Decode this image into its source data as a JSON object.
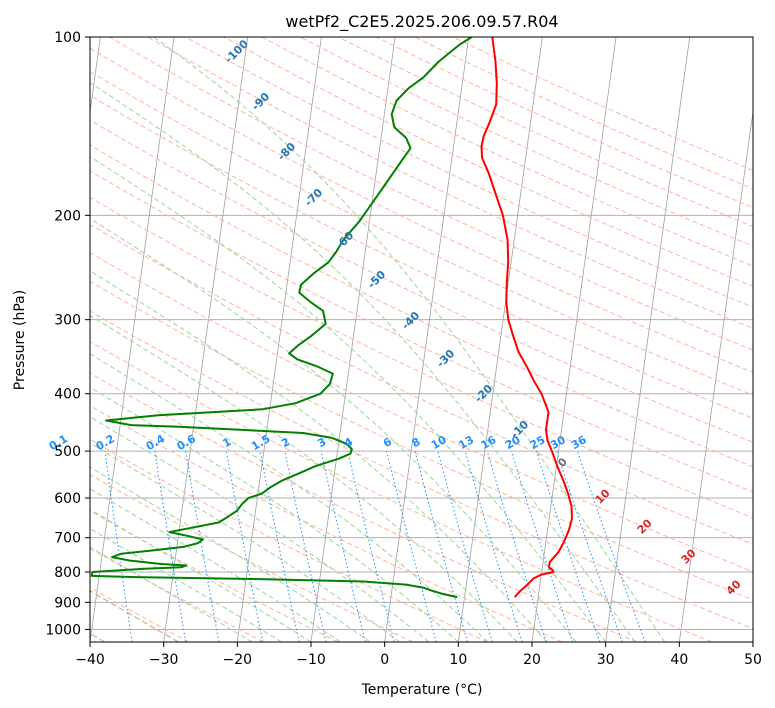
{
  "chart_data": {
    "type": "line",
    "chart_kind": "skew-T log-P diagram",
    "title": "wetPf2_C2E5.2025.206.09.57.R04",
    "xlabel": "Temperature (°C)",
    "ylabel": "Pressure (hPa)",
    "xlim": [
      -40,
      50
    ],
    "ylim": [
      1050,
      100
    ],
    "y_scale": "log",
    "x_ticks": [
      -40,
      -30,
      -20,
      -10,
      0,
      10,
      20,
      30,
      40,
      50
    ],
    "y_ticks": [
      100,
      200,
      300,
      400,
      500,
      600,
      700,
      800,
      900,
      1000
    ],
    "grid": true,
    "series": [
      {
        "color": "#ff0000",
        "points": [
          [
            882,
            16.8
          ],
          [
            860,
            17.5
          ],
          [
            840,
            18.3
          ],
          [
            820,
            19.0
          ],
          [
            808,
            20.0
          ],
          [
            800,
            21.6
          ],
          [
            795,
            21.5
          ],
          [
            785,
            20.9
          ],
          [
            770,
            20.9
          ],
          [
            755,
            21.4
          ],
          [
            740,
            21.9
          ],
          [
            720,
            22.3
          ],
          [
            700,
            22.6
          ],
          [
            680,
            22.9
          ],
          [
            650,
            23.1
          ],
          [
            620,
            22.8
          ],
          [
            590,
            22.1
          ],
          [
            560,
            21.2
          ],
          [
            530,
            20.1
          ],
          [
            500,
            19.1
          ],
          [
            480,
            18.3
          ],
          [
            460,
            17.9
          ],
          [
            445,
            17.9
          ],
          [
            430,
            17.9
          ],
          [
            420,
            17.5
          ],
          [
            400,
            16.6
          ],
          [
            380,
            15.3
          ],
          [
            360,
            14.1
          ],
          [
            340,
            12.7
          ],
          [
            320,
            11.7
          ],
          [
            300,
            10.7
          ],
          [
            280,
            10.1
          ],
          [
            260,
            9.8
          ],
          [
            240,
            9.6
          ],
          [
            220,
            9.1
          ],
          [
            200,
            8.0
          ],
          [
            185,
            6.7
          ],
          [
            170,
            5.3
          ],
          [
            160,
            4.1
          ],
          [
            153,
            3.8
          ],
          [
            147,
            3.9
          ],
          [
            140,
            4.4
          ],
          [
            130,
            5.0
          ],
          [
            120,
            4.7
          ],
          [
            110,
            4.1
          ],
          [
            100,
            3.2
          ]
        ]
      },
      {
        "color": "#008000",
        "points": [
          [
            882,
            9.0
          ],
          [
            870,
            6.8
          ],
          [
            860,
            5.4
          ],
          [
            850,
            4.2
          ],
          [
            840,
            1.8
          ],
          [
            830,
            -4.0
          ],
          [
            822,
            -19.0
          ],
          [
            816,
            -35.0
          ],
          [
            812,
            -41.0
          ],
          [
            800,
            -41.0
          ],
          [
            790,
            -34.0
          ],
          [
            785,
            -29.0
          ],
          [
            780,
            -28.4
          ],
          [
            775,
            -32.0
          ],
          [
            765,
            -36.2
          ],
          [
            755,
            -38.6
          ],
          [
            745,
            -37.4
          ],
          [
            735,
            -33.0
          ],
          [
            725,
            -29.0
          ],
          [
            715,
            -27.2
          ],
          [
            705,
            -26.6
          ],
          [
            695,
            -28.8
          ],
          [
            685,
            -31.3
          ],
          [
            672,
            -28.0
          ],
          [
            660,
            -24.8
          ],
          [
            645,
            -23.6
          ],
          [
            630,
            -22.5
          ],
          [
            615,
            -22.0
          ],
          [
            600,
            -21.2
          ],
          [
            590,
            -19.5
          ],
          [
            575,
            -18.4
          ],
          [
            560,
            -16.9
          ],
          [
            545,
            -14.8
          ],
          [
            530,
            -12.7
          ],
          [
            515,
            -9.7
          ],
          [
            505,
            -8.2
          ],
          [
            496,
            -8.1
          ],
          [
            486,
            -8.9
          ],
          [
            475,
            -11.0
          ],
          [
            466,
            -15.0
          ],
          [
            460,
            -24.0
          ],
          [
            455,
            -32.0
          ],
          [
            452,
            -38.5
          ],
          [
            444,
            -42.0
          ],
          [
            435,
            -35.0
          ],
          [
            425,
            -21.0
          ],
          [
            415,
            -16.6
          ],
          [
            400,
            -13.4
          ],
          [
            385,
            -12.3
          ],
          [
            370,
            -12.1
          ],
          [
            360,
            -14.3
          ],
          [
            350,
            -17.2
          ],
          [
            342,
            -18.4
          ],
          [
            332,
            -17.4
          ],
          [
            320,
            -15.8
          ],
          [
            305,
            -14.0
          ],
          [
            290,
            -14.6
          ],
          [
            280,
            -16.5
          ],
          [
            270,
            -18.2
          ],
          [
            262,
            -18.1
          ],
          [
            250,
            -16.5
          ],
          [
            240,
            -14.8
          ],
          [
            230,
            -13.9
          ],
          [
            220,
            -13.2
          ],
          [
            205,
            -11.4
          ],
          [
            190,
            -9.9
          ],
          [
            175,
            -8.3
          ],
          [
            162,
            -6.8
          ],
          [
            154,
            -5.8
          ],
          [
            148,
            -6.6
          ],
          [
            142,
            -8.4
          ],
          [
            135,
            -9.0
          ],
          [
            128,
            -8.6
          ],
          [
            122,
            -7.2
          ],
          [
            117,
            -5.4
          ],
          [
            110,
            -3.6
          ],
          [
            103,
            -1.1
          ],
          [
            100,
            0.4
          ]
        ]
      }
    ],
    "annotations": {
      "dry_adiabat_labels": [
        "-100",
        "-90",
        "-80",
        "-70",
        "-60",
        "-50",
        "-40",
        "-30",
        "-20",
        "-10"
      ],
      "mixing_ratio_labels": [
        "0.1",
        "0.2",
        "0.4",
        "0.6",
        "1",
        "1.5",
        "2",
        "3",
        "4",
        "6",
        "8",
        "10",
        "13",
        "16",
        "20",
        "25",
        "30",
        "36"
      ],
      "moist_adiabat_labels": [
        "0",
        "10",
        "20",
        "30",
        "40"
      ]
    },
    "colors": {
      "isobar": "#b0b0b0",
      "isotherm": "#a0a0a0",
      "dry_adiabat": "#ffb49c",
      "moist_adiabat": "#9fd39f",
      "mixing_ratio": "#1e90ff",
      "theta_e": "#d2b48c",
      "dry_label": "#1f77b4",
      "mixing_label": "#1e90ff",
      "moist_label": "#d62728",
      "moist_zero_label": "#707070"
    }
  }
}
